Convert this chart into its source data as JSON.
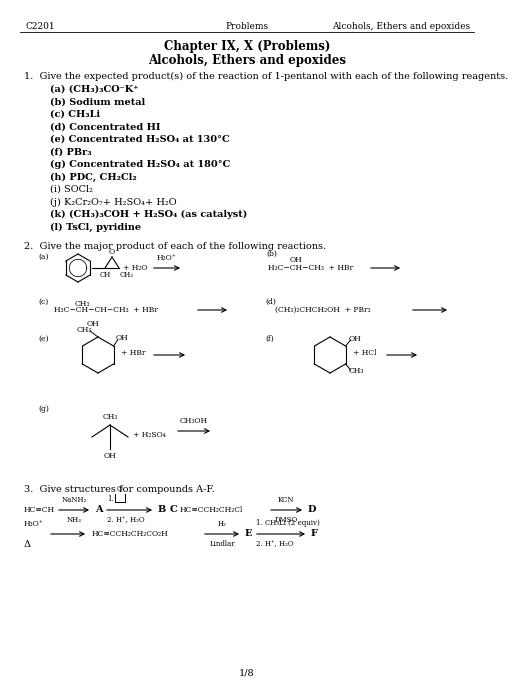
{
  "header_left": "C2201",
  "header_center": "Problems",
  "header_right": "Alcohols, Ethers and epoxides",
  "title_line1": "Chapter IX, X (Problems)",
  "title_line2": "Alcohols, Ethers and epoxides",
  "q1_intro": "1.  Give the expected product(s) of the reaction of 1-pentanol with each of the following reagents.",
  "q1_items": [
    [
      "(a) (CH₃)₃CO⁻K⁺",
      true
    ],
    [
      "(b) Sodium metal",
      true
    ],
    [
      "(c) CH₃Li",
      true
    ],
    [
      "(d) Concentrated HI",
      true
    ],
    [
      "(e) Concentrated H₂SO₄ at 130°C",
      true
    ],
    [
      "(f) PBr₃",
      true
    ],
    [
      "(g) Concentrated H₂SO₄ at 180°C",
      true
    ],
    [
      "(h) PDC, CH₂Cl₂",
      true
    ],
    [
      "(i) SOCl₂",
      false
    ],
    [
      "(j) K₂Cr₂O₇+ H₂SO₄+ H₂O",
      false
    ],
    [
      "(k) (CH₃)₃COH + H₂SO₄ (as catalyst)",
      true
    ],
    [
      "(l) TsCl, pyridine",
      true
    ]
  ],
  "q2_intro": "2.  Give the major product of each of the following reactions.",
  "q3_intro": "3.  Give structures for compounds A-F.",
  "page_footer": "1/8",
  "bg_color": "#ffffff",
  "text_color": "#000000"
}
